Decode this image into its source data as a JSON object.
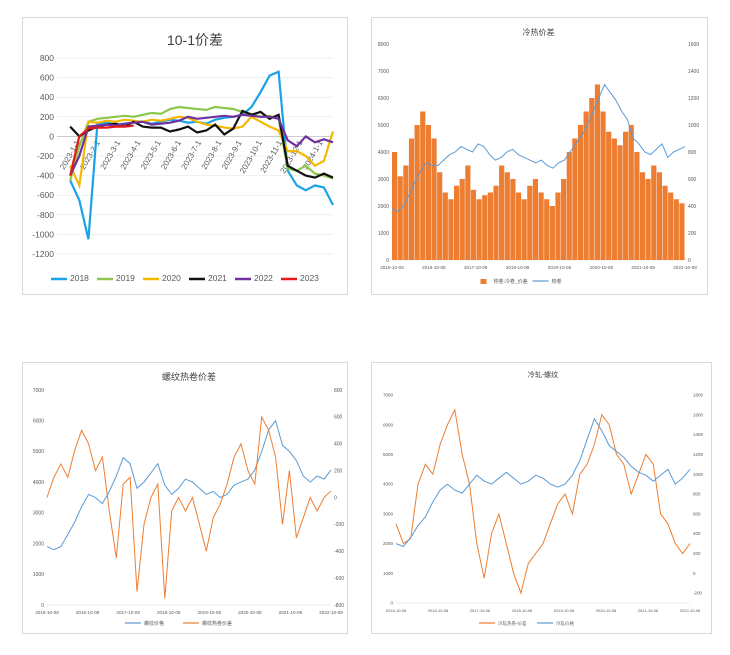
{
  "chart_data": [
    {
      "type": "line",
      "title": "10-1价差",
      "ylim": [
        -1200,
        800
      ],
      "yticks": [
        "800",
        "600",
        "400",
        "200",
        "0",
        "-200",
        "-400",
        "-600",
        "-800",
        "-1000",
        "-1200"
      ],
      "xticks": [
        "2023-1-1",
        "2023-2-1",
        "2023-3-1",
        "2023-4-1",
        "2023-5-1",
        "2023-6-1",
        "2023-7-1",
        "2023-8-1",
        "2023-9-1",
        "2023-10-1",
        "2023-11-1",
        "2023-12-1",
        "2024-1-1"
      ],
      "grid": true,
      "legend": "bottom",
      "series": [
        {
          "name": "2018",
          "color": "#1aa3e8",
          "values": [
            -450,
            -650,
            -1050,
            130,
            140,
            120,
            130,
            140,
            150,
            130,
            150,
            170,
            160,
            140,
            150,
            130,
            170,
            190,
            200,
            220,
            300,
            450,
            620,
            660,
            -350,
            -500,
            -550,
            -500,
            -520,
            -700
          ]
        },
        {
          "name": "2019",
          "color": "#8cc84b",
          "values": [
            -450,
            -100,
            150,
            180,
            190,
            200,
            210,
            200,
            220,
            240,
            230,
            280,
            300,
            290,
            280,
            270,
            300,
            290,
            280,
            250,
            230,
            200,
            210,
            180,
            -330,
            -350,
            -300,
            -380,
            -400,
            -430
          ]
        },
        {
          "name": "2020",
          "color": "#f5b800",
          "values": [
            -300,
            -500,
            150,
            140,
            160,
            150,
            170,
            160,
            150,
            170,
            160,
            180,
            200,
            190,
            150,
            120,
            110,
            90,
            80,
            100,
            200,
            150,
            100,
            60,
            -150,
            -150,
            -200,
            -300,
            -250,
            50
          ]
        },
        {
          "name": "2021",
          "color": "#111111",
          "values": [
            100,
            0,
            60,
            100,
            120,
            130,
            100,
            150,
            100,
            90,
            90,
            50,
            70,
            100,
            40,
            60,
            120,
            20,
            80,
            260,
            220,
            250,
            180,
            220,
            -300,
            -350,
            -400,
            -420,
            -380,
            -420
          ]
        },
        {
          "name": "2022",
          "color": "#7030a0",
          "values": [
            -400,
            -200,
            100,
            110,
            120,
            110,
            130,
            140,
            150,
            120,
            130,
            140,
            160,
            200,
            180,
            190,
            200,
            210,
            200,
            220,
            210,
            200,
            200,
            180,
            -40,
            -100,
            0,
            -60,
            -30,
            -60
          ]
        },
        {
          "name": "2023",
          "color": "#e31a1c",
          "values": [
            -400,
            0,
            80,
            90,
            90,
            100,
            100,
            110
          ]
        }
      ]
    },
    {
      "type": "bar",
      "title": "冷热价差",
      "ylim": [
        0,
        8000
      ],
      "y2lim": [
        0,
        1600
      ],
      "yticks": [
        "8000",
        "7000",
        "6000",
        "5000",
        "4000",
        "3000",
        "2000",
        "1000",
        "0"
      ],
      "y2ticks": [
        "1600",
        "1400",
        "1200",
        "1000",
        "800",
        "600",
        "400",
        "200",
        "0"
      ],
      "xticks": [
        "2015-10-08",
        "2016-10-08",
        "2017-10-08",
        "2018-10-08",
        "2019-10-08",
        "2020-10-08",
        "2021-10-08",
        "2022-10-08"
      ],
      "legend": "bottom",
      "series": [
        {
          "name": "热卷:冷卷_价差",
          "color": "#ed7d31",
          "axis": "left",
          "values": [
            800,
            620,
            700,
            900,
            1000,
            1100,
            1000,
            900,
            650,
            500,
            450,
            550,
            600,
            700,
            520,
            450,
            480,
            500,
            550,
            700,
            650,
            600,
            500,
            450,
            550,
            600,
            500,
            450,
            400,
            500,
            600,
            800,
            900,
            1000,
            1100,
            1200,
            1300,
            1100,
            950,
            900,
            850,
            950,
            1000,
            800,
            650,
            600,
            700,
            650,
            550,
            500,
            450,
            420
          ]
        },
        {
          "name": "热卷",
          "color": "#5b9bd5",
          "axis": "right",
          "values": [
            1900,
            1800,
            2000,
            2400,
            2900,
            3300,
            3600,
            3500,
            3500,
            3700,
            3900,
            4000,
            4200,
            4100,
            4000,
            4300,
            4200,
            3900,
            3700,
            3800,
            4000,
            4100,
            3900,
            3800,
            3700,
            3600,
            3700,
            3500,
            3400,
            3600,
            3700,
            4000,
            4300,
            4600,
            5000,
            5500,
            6000,
            6500,
            6200,
            5900,
            5500,
            5200,
            4500,
            4300,
            4000,
            3900,
            4100,
            4300,
            3800,
            4000,
            4100,
            4200
          ]
        }
      ]
    },
    {
      "type": "line",
      "title": "螺纹热卷价差",
      "ylim": [
        0,
        7000
      ],
      "y2lim": [
        -800,
        800
      ],
      "yticks": [
        "7000",
        "6000",
        "5000",
        "4000",
        "3000",
        "2000",
        "1000",
        "0"
      ],
      "y2ticks": [
        "800",
        "600",
        "400",
        "200",
        "0",
        "-200",
        "-400",
        "-600",
        "-800"
      ],
      "xticks": [
        "2015-10-08",
        "2016-10-08",
        "2017-10-08",
        "2018-10-08",
        "2019-10-08",
        "2020-10-08",
        "2021-10-08",
        "2022-10-08"
      ],
      "legend": "bottom",
      "series": [
        {
          "name": "螺纹价格",
          "color": "#5b9bd5",
          "axis": "left",
          "values": [
            1900,
            1800,
            1900,
            2300,
            2700,
            3200,
            3600,
            3500,
            3300,
            3700,
            4200,
            4800,
            4600,
            3800,
            4000,
            4300,
            4600,
            3900,
            3600,
            3800,
            4100,
            4000,
            3800,
            3600,
            3700,
            3500,
            3600,
            3900,
            4000,
            4100,
            4400,
            5000,
            5700,
            6000,
            5200,
            5000,
            4700,
            4200,
            4000,
            4200,
            4100,
            4400
          ]
        },
        {
          "name": "螺纹热卷价差",
          "color": "#ed7d31",
          "axis": "right",
          "values": [
            0,
            150,
            250,
            150,
            350,
            500,
            400,
            200,
            300,
            -100,
            -450,
            100,
            150,
            -700,
            -200,
            0,
            100,
            -750,
            -100,
            0,
            -100,
            0,
            -200,
            -400,
            -150,
            -50,
            100,
            300,
            400,
            200,
            100,
            600,
            500,
            300,
            -200,
            200,
            -300,
            -150,
            0,
            -100,
            0,
            50
          ]
        }
      ]
    },
    {
      "type": "line",
      "title": "冷轧-螺纹",
      "ylim": [
        0,
        7000
      ],
      "y2lim": [
        -300,
        1800
      ],
      "yticks": [
        "7000",
        "6000",
        "5000",
        "4000",
        "3000",
        "2000",
        "1000",
        "0"
      ],
      "y2ticks": [
        "1800",
        "1600",
        "1400",
        "1200",
        "1000",
        "800",
        "600",
        "400",
        "200",
        "0",
        "-200"
      ],
      "xticks": [
        "2015-10-08",
        "2016-10-08",
        "2017-10-08",
        "2018-10-08",
        "2019-10-08",
        "2020-10-08",
        "2021-10-08",
        "2022-10-08"
      ],
      "legend": "bottom",
      "series": [
        {
          "name": "冷轧热卷-价差",
          "color": "#ed7d31",
          "axis": "right",
          "values": [
            500,
            300,
            350,
            900,
            1100,
            1000,
            1300,
            1500,
            1650,
            1200,
            900,
            300,
            -50,
            400,
            600,
            300,
            0,
            -200,
            100,
            200,
            300,
            500,
            700,
            800,
            600,
            1000,
            1100,
            1300,
            1600,
            1500,
            1200,
            1100,
            800,
            1000,
            1200,
            1100,
            600,
            500,
            300,
            200,
            300
          ]
        },
        {
          "name": "冷轧价格",
          "color": "#5b9bd5",
          "axis": "left",
          "values": [
            2000,
            1900,
            2200,
            2600,
            2900,
            3400,
            3800,
            4000,
            3800,
            3700,
            4000,
            4300,
            4100,
            4000,
            4200,
            4400,
            4200,
            4000,
            4100,
            4300,
            4200,
            4000,
            3900,
            4000,
            4300,
            4800,
            5500,
            6200,
            5800,
            5300,
            5100,
            4900,
            4600,
            4400,
            4300,
            4100,
            4300,
            4500,
            4000,
            4200,
            4500
          ]
        }
      ]
    }
  ]
}
